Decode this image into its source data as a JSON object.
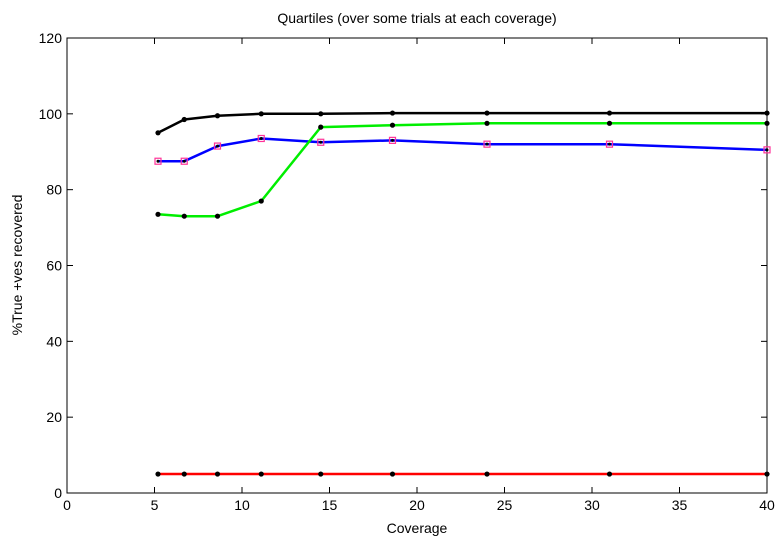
{
  "chart_data": {
    "type": "line",
    "title": "Quartiles (over some trials at each coverage)",
    "xlabel": "Coverage",
    "ylabel": "%True +ves recovered",
    "xlim": [
      0,
      40
    ],
    "ylim": [
      0,
      120
    ],
    "xticks": [
      0,
      5,
      10,
      15,
      20,
      25,
      30,
      35,
      40
    ],
    "yticks": [
      0,
      20,
      40,
      60,
      80,
      100,
      120
    ],
    "grid": false,
    "legend": "none",
    "x": [
      5.2,
      6.7,
      8.6,
      11.1,
      14.5,
      18.6,
      24.0,
      31.0,
      40.0
    ],
    "series": [
      {
        "color": "#000000",
        "marker": "dot",
        "values": [
          95.0,
          98.5,
          99.5,
          100.0,
          100.0,
          100.2,
          100.2,
          100.2,
          100.2
        ]
      },
      {
        "color": "#0000ff",
        "marker": "square",
        "values": [
          87.5,
          87.5,
          91.5,
          93.5,
          92.5,
          93.0,
          92.0,
          92.0,
          90.5
        ]
      },
      {
        "color": "#00ee00",
        "marker": "dot",
        "values": [
          73.5,
          73.0,
          73.0,
          77.0,
          96.5,
          97.0,
          97.5,
          97.5,
          97.5
        ]
      },
      {
        "color": "#ff0000",
        "marker": "dot",
        "values": [
          5.0,
          5.0,
          5.0,
          5.0,
          5.0,
          5.0,
          5.0,
          5.0,
          5.0
        ]
      }
    ]
  }
}
